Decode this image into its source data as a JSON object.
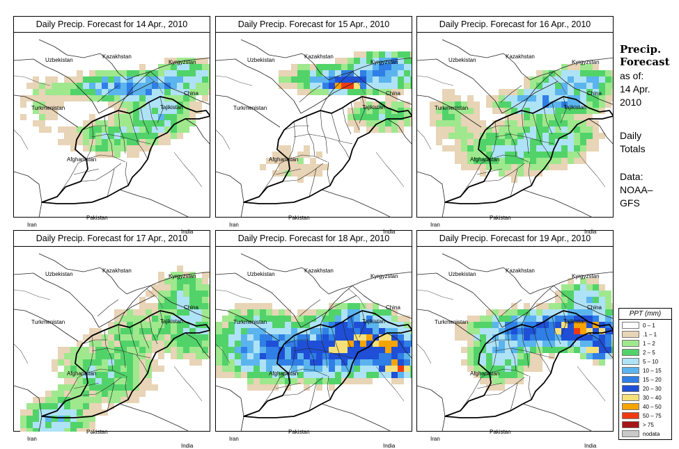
{
  "panels": [
    {
      "title": "Daily Precip. Forecast for  14 Apr., 2010"
    },
    {
      "title": "Daily Precip. Forecast for  15 Apr., 2010"
    },
    {
      "title": "Daily Precip. Forecast for  16 Apr., 2010"
    },
    {
      "title": "Daily Precip. Forecast for  17 Apr., 2010"
    },
    {
      "title": "Daily Precip. Forecast for  18 Apr., 2010"
    },
    {
      "title": "Daily Precip. Forecast for  19 Apr., 2010"
    }
  ],
  "country_labels": {
    "uzbekistan": "Uzbekistan",
    "kazakhstan": "Kazakhstan",
    "kyrgyzstan": "Kyrgyzstan",
    "china": "China",
    "turkmenistan": "Turkmenistan",
    "tajikistan": "Tajikistan",
    "afghanistan": "Afghanistan",
    "pakistan": "Pakistan",
    "iran": "Iran",
    "india": "India"
  },
  "side": {
    "title_line1": "Precip.",
    "title_line2": "Forecast",
    "asof_line1": "as of:",
    "asof_line2": "14 Apr.",
    "asof_line3": "2010",
    "daily_line1": "Daily",
    "daily_line2": "Totals",
    "data_line1": "Data:",
    "data_line2": "NOAA–",
    "data_line3": "GFS"
  },
  "legend": {
    "title": "PPT (mm)",
    "items": [
      {
        "label": "0 – 1",
        "color": "#ffffff"
      },
      {
        "label": ".1 – 1",
        "color": "#e8d4b6"
      },
      {
        "label": "1 – 2",
        "color": "#9fe88e"
      },
      {
        "label": "2 – 5",
        "color": "#52d36a"
      },
      {
        "label": "5 – 10",
        "color": "#aee2f6"
      },
      {
        "label": "10 – 15",
        "color": "#5bb4ee"
      },
      {
        "label": "15 – 20",
        "color": "#2f7fe6"
      },
      {
        "label": "20 – 30",
        "color": "#1f4fd6"
      },
      {
        "label": "30 – 40",
        "color": "#f5e07a"
      },
      {
        "label": "40 – 50",
        "color": "#f7a300"
      },
      {
        "label": "50 – 75",
        "color": "#ef3a10"
      },
      {
        "label": "> 75",
        "color": "#a51616"
      },
      {
        "label": "nodata",
        "color": "#c9c9c9"
      }
    ]
  }
}
